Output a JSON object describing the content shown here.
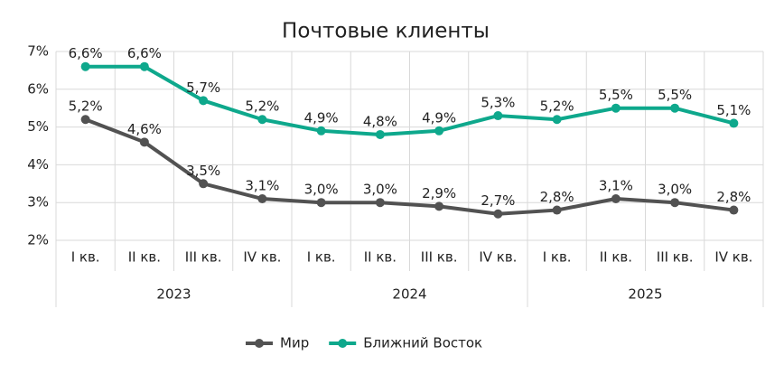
{
  "chart_data": {
    "type": "line",
    "title": "Почтовые клиенты",
    "categories": [
      "I кв.",
      "II кв.",
      "III кв.",
      "IV кв.",
      "I кв.",
      "II кв.",
      "III кв.",
      "IV кв.",
      "I кв.",
      "II кв.",
      "III кв.",
      "IV кв."
    ],
    "x_groups": [
      "2023",
      "2024",
      "2025"
    ],
    "ylim": [
      2,
      7
    ],
    "yticks": [
      {
        "value": 2,
        "label": "2%"
      },
      {
        "value": 3,
        "label": "3%"
      },
      {
        "value": 4,
        "label": "4%"
      },
      {
        "value": 5,
        "label": "5%"
      },
      {
        "value": 6,
        "label": "6%"
      },
      {
        "value": 7,
        "label": "7%"
      }
    ],
    "grid": true,
    "legend": "bottom",
    "series": [
      {
        "name": "Мир",
        "color": "#525252",
        "values": [
          5.2,
          4.6,
          3.5,
          3.1,
          3.0,
          3.0,
          2.9,
          2.7,
          2.8,
          3.1,
          3.0,
          2.8
        ],
        "value_labels": [
          "5,2%",
          "4,6%",
          "3,5%",
          "3,1%",
          "3,0%",
          "3,0%",
          "2,9%",
          "2,7%",
          "2,8%",
          "3,1%",
          "3,0%",
          "2,8%"
        ]
      },
      {
        "name": "Ближний Восток",
        "color": "#0ea88c",
        "values": [
          6.6,
          6.6,
          5.7,
          5.2,
          4.9,
          4.8,
          4.9,
          5.3,
          5.2,
          5.5,
          5.5,
          5.1
        ],
        "value_labels": [
          "6,6%",
          "6,6%",
          "5,7%",
          "5,2%",
          "4,9%",
          "4,8%",
          "4,9%",
          "5,3%",
          "5,2%",
          "5,5%",
          "5,5%",
          "5,1%"
        ]
      }
    ]
  }
}
